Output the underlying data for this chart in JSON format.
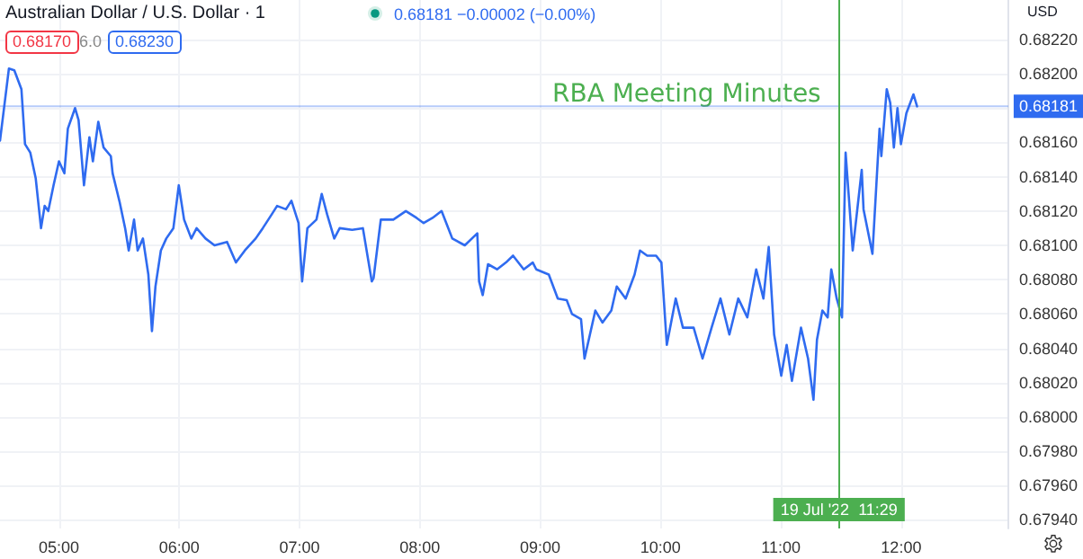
{
  "chart_data": {
    "type": "line",
    "title": "Australian Dollar / U.S. Dollar · 1",
    "ylabel": "USD",
    "annotations": [
      "0.68181 −0.00002 (−0.00%)",
      "0.68170",
      "6.0",
      "0.68230",
      {
        "text": "RBA Meeting Minutes",
        "x": 11.483,
        "y": 0.68188
      }
    ],
    "x": [
      4.51,
      4.584,
      4.629,
      4.688,
      4.718,
      4.762,
      4.807,
      4.851,
      4.881,
      4.911,
      4.955,
      5.0,
      5.045,
      5.074,
      5.134,
      5.163,
      5.208,
      5.253,
      5.282,
      5.327,
      5.371,
      5.431,
      5.446,
      5.505,
      5.55,
      5.58,
      5.624,
      5.654,
      5.698,
      5.743,
      5.773,
      5.802,
      5.847,
      5.892,
      5.951,
      5.996,
      6.04,
      6.1,
      6.144,
      6.218,
      6.293,
      6.397,
      6.471,
      6.545,
      6.635,
      6.694,
      6.768,
      6.813,
      6.887,
      6.932,
      6.991,
      7.021,
      7.065,
      7.14,
      7.184,
      7.229,
      7.288,
      7.333,
      7.437,
      7.526,
      7.6,
      7.615,
      7.675,
      7.779,
      7.883,
      7.972,
      8.031,
      8.105,
      8.18,
      8.269,
      8.373,
      8.477,
      8.492,
      8.522,
      8.566,
      8.641,
      8.715,
      8.774,
      8.863,
      8.938,
      8.967,
      9.071,
      9.146,
      9.22,
      9.264,
      9.339,
      9.368,
      9.413,
      9.458,
      9.517,
      9.591,
      9.636,
      9.71,
      9.784,
      9.829,
      9.889,
      9.963,
      10.007,
      10.052,
      10.126,
      10.186,
      10.275,
      10.349,
      10.424,
      10.498,
      10.572,
      10.646,
      10.721,
      10.795,
      10.855,
      10.899,
      10.944,
      11.003,
      11.048,
      11.092,
      11.167,
      11.226,
      11.271,
      11.3,
      11.345,
      11.389,
      11.419,
      11.464,
      11.508,
      11.538,
      11.597,
      11.672,
      11.687,
      11.761,
      11.82,
      11.835,
      11.88,
      11.909,
      11.939,
      11.969,
      11.998,
      12.043,
      12.102,
      12.132
    ],
    "series": [
      {
        "color": "#2f6bf0",
        "values": [
          0.68161,
          0.68203,
          0.68202,
          0.68191,
          0.68159,
          0.68154,
          0.68139,
          0.6811,
          0.68123,
          0.6812,
          0.68135,
          0.68149,
          0.68142,
          0.68168,
          0.6818,
          0.68173,
          0.68135,
          0.68163,
          0.68149,
          0.68172,
          0.68157,
          0.68152,
          0.68142,
          0.68125,
          0.6811,
          0.68097,
          0.68115,
          0.68097,
          0.68104,
          0.68083,
          0.6805,
          0.68076,
          0.68097,
          0.68104,
          0.6811,
          0.68135,
          0.68115,
          0.68104,
          0.6811,
          0.68104,
          0.681,
          0.68102,
          0.6809,
          0.68097,
          0.68104,
          0.6811,
          0.68118,
          0.68123,
          0.68121,
          0.68126,
          0.68113,
          0.68079,
          0.6811,
          0.68115,
          0.6813,
          0.68118,
          0.68104,
          0.6811,
          0.68109,
          0.6811,
          0.68079,
          0.68081,
          0.68115,
          0.68115,
          0.6812,
          0.68116,
          0.68113,
          0.68116,
          0.6812,
          0.68104,
          0.681,
          0.68107,
          0.68079,
          0.68071,
          0.68089,
          0.68086,
          0.6809,
          0.68094,
          0.68086,
          0.6809,
          0.68086,
          0.68083,
          0.68069,
          0.68068,
          0.6806,
          0.68057,
          0.68034,
          0.68048,
          0.68062,
          0.68055,
          0.68062,
          0.68076,
          0.68069,
          0.68083,
          0.68097,
          0.68094,
          0.68094,
          0.6809,
          0.68042,
          0.68069,
          0.68052,
          0.68052,
          0.68034,
          0.68052,
          0.68069,
          0.68048,
          0.68069,
          0.68058,
          0.68086,
          0.68069,
          0.68099,
          0.68048,
          0.68024,
          0.68042,
          0.68021,
          0.68052,
          0.68034,
          0.6801,
          0.68045,
          0.68062,
          0.68058,
          0.68086,
          0.68069,
          0.68058,
          0.68154,
          0.68097,
          0.68144,
          0.68121,
          0.68095,
          0.68168,
          0.68152,
          0.68191,
          0.68183,
          0.68157,
          0.6818,
          0.68159,
          0.68177,
          0.68188,
          0.68181
        ]
      }
    ],
    "xlim": [
      4.51,
      12.89
    ],
    "ylim": [
      0.67935,
      0.68243
    ],
    "xticks": [
      {
        "value": 5,
        "label": "05:00"
      },
      {
        "value": 6,
        "label": "06:00"
      },
      {
        "value": 7,
        "label": "07:00"
      },
      {
        "value": 8,
        "label": "08:00"
      },
      {
        "value": 9,
        "label": "09:00"
      },
      {
        "value": 10,
        "label": "10:00"
      },
      {
        "value": 11,
        "label": "11:00"
      },
      {
        "value": 12,
        "label": "12:00"
      }
    ],
    "yticks": [
      {
        "value": 0.6794,
        "label": "0.67940"
      },
      {
        "value": 0.6796,
        "label": "0.67960"
      },
      {
        "value": 0.6798,
        "label": "0.67980"
      },
      {
        "value": 0.68,
        "label": "0.68000"
      },
      {
        "value": 0.6802,
        "label": "0.68020"
      },
      {
        "value": 0.6804,
        "label": "0.68040"
      },
      {
        "value": 0.6806,
        "label": "0.68060"
      },
      {
        "value": 0.6808,
        "label": "0.68080"
      },
      {
        "value": 0.681,
        "label": "0.68100"
      },
      {
        "value": 0.6812,
        "label": "0.68120"
      },
      {
        "value": 0.6814,
        "label": "0.68140"
      },
      {
        "value": 0.6816,
        "label": "0.68160"
      },
      {
        "value": 0.6818,
        "label": null
      },
      {
        "value": 0.682,
        "label": "0.68200"
      },
      {
        "value": 0.6822,
        "label": "0.68220"
      }
    ],
    "ref_lines": [
      {
        "axis": "x",
        "value": 11.483,
        "label": "19 Jul '22  11:29",
        "color": "#4caf50"
      },
      {
        "axis": "y",
        "value": 0.68181,
        "label": "0.68181",
        "color": "#2f6bf0"
      }
    ],
    "grid": true,
    "marker": "none",
    "line_style": "solid"
  }
}
